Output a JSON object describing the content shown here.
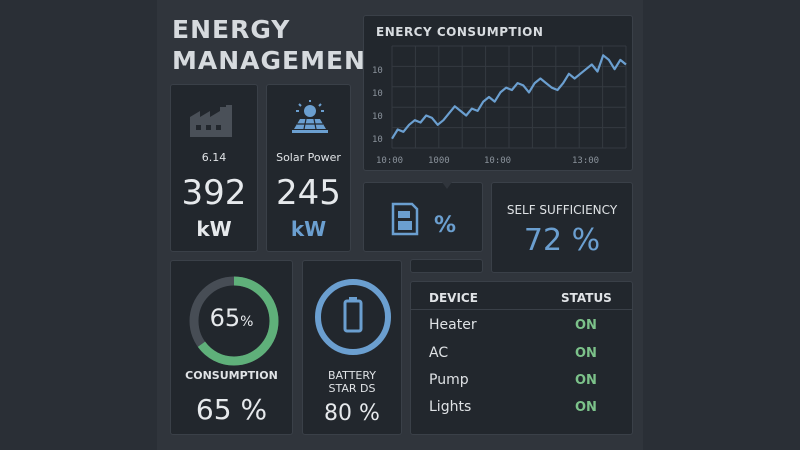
{
  "header": {
    "title_line1": "ENERGY",
    "title_line2": "MANAGEMENT"
  },
  "grid_cards": {
    "grid_label": "6.14",
    "grid_value": "392",
    "grid_unit": "kW",
    "solar_label": "Solar Power",
    "solar_value": "245",
    "solar_unit": "kW",
    "storage_unit": "%"
  },
  "self_sufficiency": {
    "label": "SELF SUFFICIENCY",
    "value": "72 %"
  },
  "consumption_ring": {
    "center_value": "65",
    "center_unit": "%",
    "label": "CONSUMPTION",
    "value": "65 %",
    "level": 0.65
  },
  "battery_ring": {
    "label_line1": "BATTERY",
    "label_line2": "STAR DS",
    "value": "80 %",
    "level": 0.8
  },
  "device_table": {
    "col_device": "DEVICE",
    "col_status": "STATUS",
    "rows": [
      {
        "device": "Heater",
        "status": "ON"
      },
      {
        "device": "AC",
        "status": "ON"
      },
      {
        "device": "Pump",
        "status": "ON"
      },
      {
        "device": "Lights",
        "status": "ON"
      }
    ]
  },
  "colors": {
    "accent_blue": "#6b9fd0",
    "accent_green": "#5fb07a",
    "status_on": "#7cc28a"
  },
  "chart_data": {
    "type": "line",
    "title": "ENERCY CONSUMPTION",
    "ytick_labels": [
      "10",
      "10",
      "10",
      "10"
    ],
    "xtick_labels": [
      "10:00",
      "1000",
      "10:00",
      "13:00"
    ],
    "series": [
      {
        "values": [
          2,
          4,
          3.5,
          5,
          6,
          5.5,
          7,
          6.5,
          5,
          6,
          7.5,
          9,
          8,
          7,
          8.5,
          8,
          10,
          11,
          10,
          12,
          13,
          12.5,
          14,
          13.5,
          12,
          14,
          15,
          14,
          13,
          12.5,
          14,
          16,
          15,
          16,
          17,
          18,
          16.5,
          20,
          19,
          17,
          19,
          18
        ]
      }
    ],
    "ylim": [
      0,
      22
    ],
    "grid": true
  }
}
